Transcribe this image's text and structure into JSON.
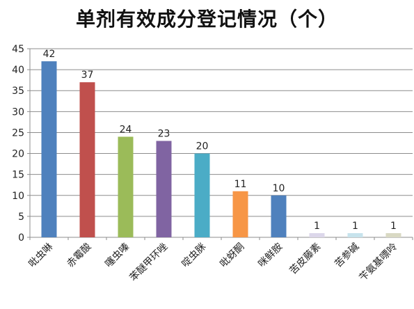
{
  "chart_data": {
    "type": "bar",
    "title": "单剂有效成分登记情况（个）",
    "categories": [
      "吡虫啉",
      "赤霉酸",
      "噻虫嗪",
      "苯醚甲环唑",
      "啶虫脒",
      "吡蚜酮",
      "咪鲜胺",
      "苦皮藤素",
      "苦参碱",
      "苄氨基嘌呤"
    ],
    "values": [
      42,
      37,
      24,
      23,
      20,
      11,
      10,
      1,
      1,
      1
    ],
    "colors": [
      "#4f81bd",
      "#c0504d",
      "#9bbb59",
      "#8064a2",
      "#4bacc6",
      "#f79646",
      "#4f81bd",
      "#dcd7ea",
      "#c7e3ec",
      "#d9d9c3"
    ],
    "yticks": [
      "0",
      "5",
      "10",
      "15",
      "20",
      "25",
      "30",
      "35",
      "40",
      "45"
    ],
    "ylim": [
      0,
      45
    ],
    "grid": true,
    "xlabel": "",
    "ylabel": ""
  }
}
